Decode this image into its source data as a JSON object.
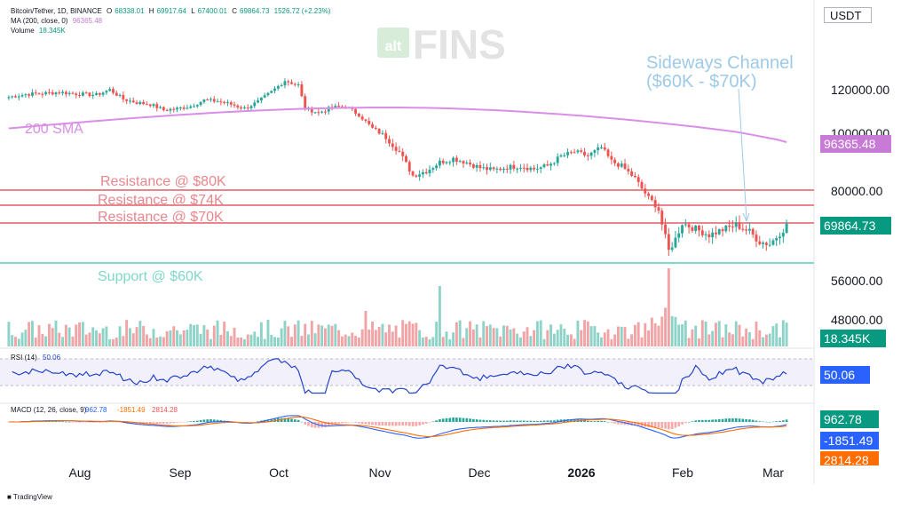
{
  "header": {
    "symbol": "Bitcoin/Tether, 1D, BINANCE",
    "ohlc": [
      {
        "label": "O",
        "value": "68338.01"
      },
      {
        "label": "H",
        "value": "69917.64"
      },
      {
        "label": "L",
        "value": "67400.01"
      },
      {
        "label": "C",
        "value": "69864.73"
      }
    ],
    "change": "1526.72 (+2.23%)",
    "ma_label": "MA (200, close, 0)",
    "ma_value": "96365.48",
    "volume_label": "Volume",
    "volume_value": "18.345K",
    "currency": "USDT"
  },
  "watermark": {
    "small": "alt",
    "big": "FINS"
  },
  "annotations": {
    "sma": "200 SMA",
    "res80": "Resistance @ $80K",
    "res74": "Resistance @ $74K",
    "res70": "Resistance @ $70K",
    "support": "Support @ $60K",
    "channel_line1": "Sideways Channel",
    "channel_line2": "($60K - $70K)"
  },
  "price_axis": {
    "ticks": [
      "120000.00",
      "100000.00",
      "80000.00",
      "56000.00",
      "48000.00"
    ]
  },
  "tags": {
    "ma": "96365.48",
    "close": "69864.73",
    "volume": "18.345K",
    "rsi": "50.06",
    "macd": "962.78",
    "signal": "-1851.49",
    "hist": "2814.28"
  },
  "rsi_legend": {
    "label": "RSI (14)",
    "value": "50.06"
  },
  "macd_legend": {
    "label": "MACD (12, 26, close, 9)",
    "v1": "962.78",
    "v2": "-1851.49",
    "v3": "2814.28"
  },
  "time_axis": [
    "Aug",
    "Sep",
    "Oct",
    "Nov",
    "Dec",
    "2026",
    "Feb",
    "Mar"
  ],
  "footer": {
    "brand": "TradingView"
  },
  "colors": {
    "up": "#26a69a",
    "down": "#ef5350",
    "ma": "#d98ee8",
    "resistance": "#e8868c",
    "support": "#7fd8c8",
    "annotation_blue": "#9ecae8",
    "rsi": "#2443c8",
    "macd": "#2962ff",
    "signal": "#ff6d00",
    "close_tag": "#089981",
    "rsi_tag": "#2962ff"
  },
  "chart_data": {
    "type": "candlestick",
    "title": "Bitcoin/Tether, 1D, BINANCE",
    "unit": "USDT",
    "ylabel": "",
    "xlabel": "",
    "x_ticks": [
      "Aug",
      "Sep",
      "Oct",
      "Nov",
      "Dec",
      "2026",
      "Feb",
      "Mar"
    ],
    "ylim": [
      46000,
      128000
    ],
    "levels": [
      {
        "name": "Resistance @ $80K",
        "value": 80000
      },
      {
        "name": "Resistance @ $74K",
        "value": 74000
      },
      {
        "name": "Resistance @ $70K",
        "value": 70000
      },
      {
        "name": "Support @ $60K",
        "value": 60000
      }
    ],
    "price_path": [
      [
        0,
        116500
      ],
      [
        5,
        117800
      ],
      [
        10,
        118200
      ],
      [
        15,
        118800
      ],
      [
        20,
        118000
      ],
      [
        26,
        117500
      ],
      [
        30,
        120000
      ],
      [
        34,
        115500
      ],
      [
        38,
        113800
      ],
      [
        42,
        113000
      ],
      [
        46,
        110300
      ],
      [
        50,
        110900
      ],
      [
        54,
        112100
      ],
      [
        58,
        115000
      ],
      [
        62,
        114500
      ],
      [
        66,
        113000
      ],
      [
        70,
        111000
      ],
      [
        74,
        114200
      ],
      [
        78,
        119000
      ],
      [
        82,
        124000
      ],
      [
        86,
        122000
      ],
      [
        88,
        111000
      ],
      [
        92,
        109000
      ],
      [
        96,
        111500
      ],
      [
        100,
        112000
      ],
      [
        104,
        108000
      ],
      [
        108,
        101500
      ],
      [
        112,
        98000
      ],
      [
        116,
        93000
      ],
      [
        120,
        85000
      ],
      [
        124,
        86500
      ],
      [
        128,
        89500
      ],
      [
        132,
        90800
      ],
      [
        136,
        89400
      ],
      [
        140,
        87600
      ],
      [
        144,
        86800
      ],
      [
        148,
        87800
      ],
      [
        152,
        88200
      ],
      [
        156,
        87200
      ],
      [
        160,
        88300
      ],
      [
        164,
        91500
      ],
      [
        168,
        93000
      ],
      [
        172,
        91700
      ],
      [
        176,
        94500
      ],
      [
        179,
        89800
      ],
      [
        182,
        88200
      ],
      [
        186,
        84000
      ],
      [
        190,
        77000
      ],
      [
        193,
        73000
      ],
      [
        196,
        63000
      ],
      [
        198,
        66000
      ],
      [
        200,
        70000
      ],
      [
        204,
        68500
      ],
      [
        208,
        67000
      ],
      [
        212,
        68300
      ],
      [
        216,
        69500
      ],
      [
        220,
        67800
      ],
      [
        223,
        65300
      ],
      [
        226,
        64700
      ],
      [
        230,
        68338
      ],
      [
        231,
        69864.73
      ]
    ],
    "sma200": {
      "name": "MA (200, close, 0)",
      "start": 101500,
      "peak": 111500,
      "end": 96365.48
    },
    "volume": {
      "name": "Volume",
      "last": 18.345,
      "unit": "K"
    },
    "rsi": {
      "name": "RSI (14)",
      "last": 50.06
    },
    "macd": {
      "name": "MACD (12, 26, close, 9)",
      "macd": 962.78,
      "signal": -1851.49,
      "histogram": 2814.28
    }
  }
}
